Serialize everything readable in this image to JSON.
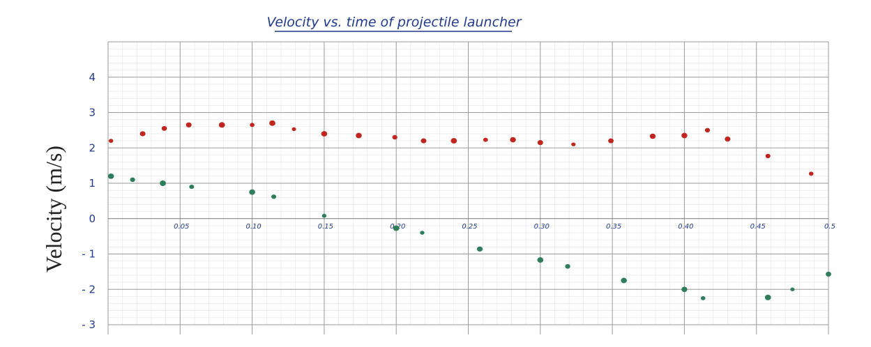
{
  "chart_data": {
    "type": "scatter",
    "title": "Velocity vs. time of projectile launcher",
    "ylabel": "Velocity (m/s)",
    "xlabel": "",
    "xlim": [
      0,
      0.5
    ],
    "ylim": [
      -3,
      5
    ],
    "grid": true,
    "legend": "none",
    "y_ticks": [
      {
        "value": 4,
        "label": "4"
      },
      {
        "value": 3,
        "label": "3"
      },
      {
        "value": 2,
        "label": "2"
      },
      {
        "value": 1,
        "label": "1"
      },
      {
        "value": 0,
        "label": "0"
      },
      {
        "value": -1,
        "label": "- 1"
      },
      {
        "value": -2,
        "label": "- 2"
      },
      {
        "value": -3,
        "label": "- 3"
      }
    ],
    "x_ticks": [
      {
        "value": 0.05,
        "label": "0.05"
      },
      {
        "value": 0.1,
        "label": "0.10"
      },
      {
        "value": 0.15,
        "label": "0.15"
      },
      {
        "value": 0.2,
        "label": "0.20"
      },
      {
        "value": 0.25,
        "label": "0.25"
      },
      {
        "value": 0.3,
        "label": "0.30"
      },
      {
        "value": 0.35,
        "label": "0.35"
      },
      {
        "value": 0.4,
        "label": "0.40"
      },
      {
        "value": 0.45,
        "label": "0.45"
      },
      {
        "value": 0.5,
        "label": "0.5"
      }
    ],
    "series": [
      {
        "color": "#c0261f",
        "points": [
          {
            "x": 0.002,
            "y": 2.2
          },
          {
            "x": 0.024,
            "y": 2.4
          },
          {
            "x": 0.039,
            "y": 2.55
          },
          {
            "x": 0.056,
            "y": 2.65
          },
          {
            "x": 0.079,
            "y": 2.65
          },
          {
            "x": 0.1,
            "y": 2.65
          },
          {
            "x": 0.114,
            "y": 2.7
          },
          {
            "x": 0.129,
            "y": 2.53
          },
          {
            "x": 0.15,
            "y": 2.4
          },
          {
            "x": 0.174,
            "y": 2.35
          },
          {
            "x": 0.199,
            "y": 2.3
          },
          {
            "x": 0.219,
            "y": 2.2
          },
          {
            "x": 0.24,
            "y": 2.2
          },
          {
            "x": 0.262,
            "y": 2.23
          },
          {
            "x": 0.281,
            "y": 2.23
          },
          {
            "x": 0.3,
            "y": 2.15
          },
          {
            "x": 0.323,
            "y": 2.1
          },
          {
            "x": 0.349,
            "y": 2.2
          },
          {
            "x": 0.378,
            "y": 2.33
          },
          {
            "x": 0.4,
            "y": 2.35
          },
          {
            "x": 0.416,
            "y": 2.5
          },
          {
            "x": 0.43,
            "y": 2.25
          },
          {
            "x": 0.458,
            "y": 1.77
          },
          {
            "x": 0.488,
            "y": 1.27
          }
        ]
      },
      {
        "color": "#2e7d5b",
        "points": [
          {
            "x": 0.002,
            "y": 1.2
          },
          {
            "x": 0.017,
            "y": 1.1
          },
          {
            "x": 0.038,
            "y": 1.0
          },
          {
            "x": 0.058,
            "y": 0.9
          },
          {
            "x": 0.1,
            "y": 0.75
          },
          {
            "x": 0.115,
            "y": 0.62
          },
          {
            "x": 0.15,
            "y": 0.08
          },
          {
            "x": 0.2,
            "y": -0.27
          },
          {
            "x": 0.218,
            "y": -0.4
          },
          {
            "x": 0.258,
            "y": -0.86
          },
          {
            "x": 0.3,
            "y": -1.17
          },
          {
            "x": 0.319,
            "y": -1.35
          },
          {
            "x": 0.358,
            "y": -1.75
          },
          {
            "x": 0.4,
            "y": -2.0
          },
          {
            "x": 0.413,
            "y": -2.25
          },
          {
            "x": 0.458,
            "y": -2.23
          },
          {
            "x": 0.475,
            "y": -2.0
          },
          {
            "x": 0.5,
            "y": -1.57
          }
        ]
      }
    ]
  }
}
